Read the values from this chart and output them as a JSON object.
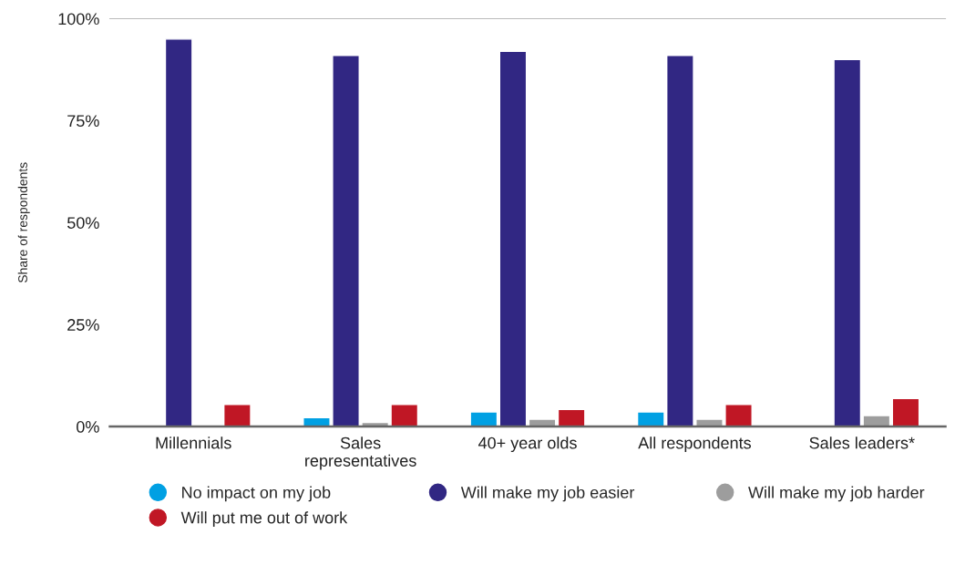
{
  "chart_data": {
    "type": "bar",
    "ylabel": "Share of respondents",
    "categories": [
      "Millennials",
      "Sales\nrepresentatives",
      "40+ year olds",
      "All respondents",
      "Sales leaders*"
    ],
    "series": [
      {
        "name": "No impact on my job",
        "color": "#00a0e3",
        "values": [
          null,
          2.2,
          3.6,
          3.6,
          null
        ]
      },
      {
        "name": "Will make my job easier",
        "color": "#312783",
        "values": [
          95,
          91,
          92,
          91,
          90
        ]
      },
      {
        "name": "Will make my job harder",
        "color": "#9d9d9d",
        "values": [
          null,
          1,
          1.8,
          1.8,
          2.7
        ]
      },
      {
        "name": "Will put me out of work",
        "color": "#c01725",
        "values": [
          5.4,
          5.4,
          4.2,
          5.4,
          6.9
        ]
      }
    ],
    "ylim": [
      0,
      100
    ],
    "yticks": [
      {
        "value": 0,
        "label": "0%"
      },
      {
        "value": 25,
        "label": "25%"
      },
      {
        "value": 50,
        "label": "50%"
      },
      {
        "value": 75,
        "label": "75%"
      },
      {
        "value": 100,
        "label": "100%"
      }
    ],
    "grid": false,
    "legend": "bottom",
    "marker": "circle"
  }
}
